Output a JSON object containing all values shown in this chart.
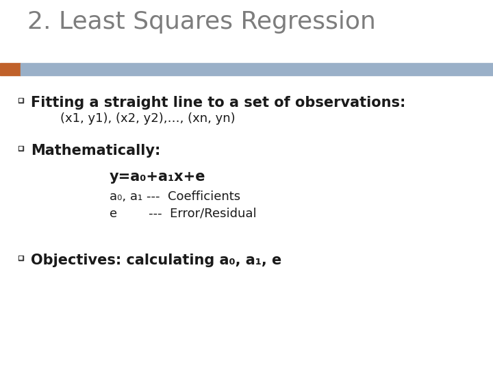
{
  "title": "2. Least Squares Regression",
  "title_color": "#7d7d7d",
  "title_fontsize": 26,
  "background_color": "#ffffff",
  "header_bar_color": "#9ab0c8",
  "header_bar_orange": "#c0612a",
  "bullet_color": "#1a1a1a",
  "bullet_square_color": "#3a3a3a",
  "bullet1_main": "Fitting a straight line to a set of observations:",
  "bullet1_sub": "    (x1, y1), (x2, y2),…, (xn, yn)",
  "bullet2_main": "Mathematically:",
  "bullet2_eq": "y=a₀+a₁x+e",
  "bullet2_line1": "a₀, a₁ ---  Coefficients",
  "bullet2_line2": "e        ---  Error/Residual",
  "bullet3_main": "Objectives: calculating a₀, a₁, e",
  "main_fontsize": 15,
  "sub_fontsize": 13,
  "eq_fontsize": 15
}
